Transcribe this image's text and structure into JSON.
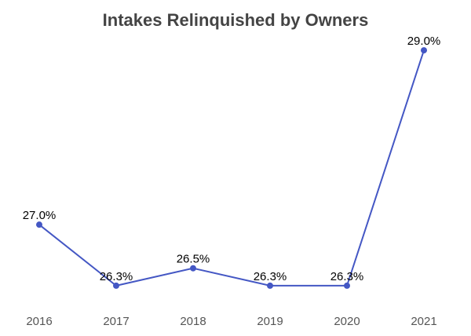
{
  "chart_data": {
    "type": "line",
    "title": "Intakes Relinquished by Owners",
    "categories": [
      "2016",
      "2017",
      "2018",
      "2019",
      "2020",
      "2021"
    ],
    "series": [
      {
        "color": "#4457c4",
        "values": [
          27.0,
          26.3,
          26.5,
          26.3,
          26.3,
          29.0
        ],
        "value_labels": [
          "27.0%",
          "26.3%",
          "26.5%",
          "26.3%",
          "26.3%",
          "29.0%"
        ]
      }
    ],
    "ylim": [
      26.2,
      29.1
    ]
  }
}
